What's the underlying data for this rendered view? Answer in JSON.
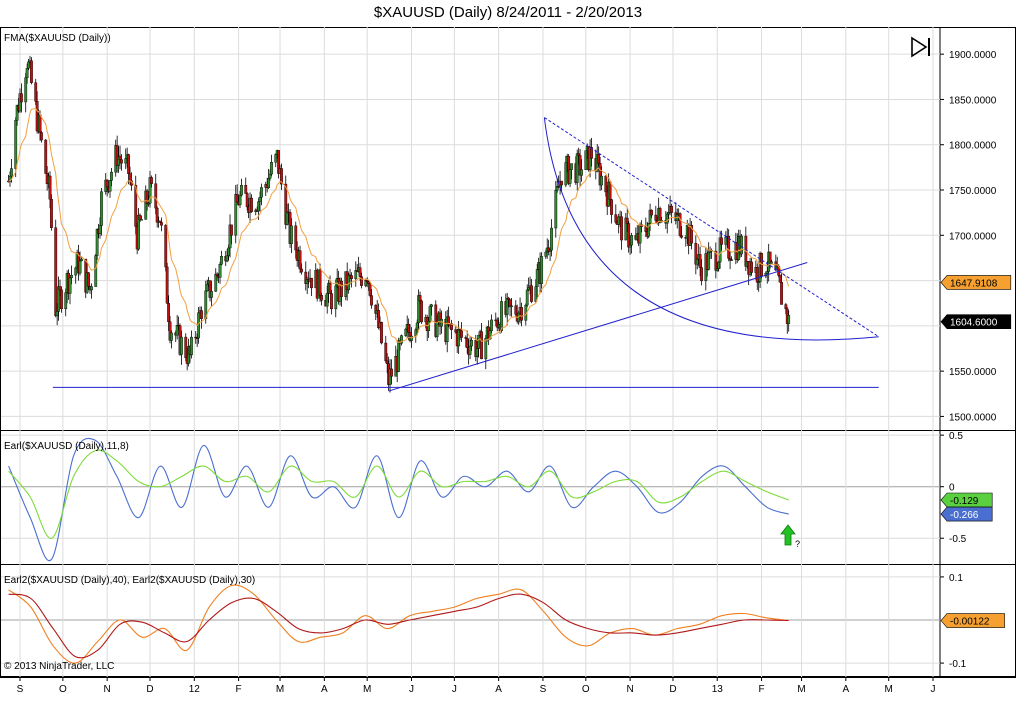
{
  "title": "$XAUUSD (Daily)  8/24/2011 - 2/20/2013",
  "copyright": "© 2013 NinjaTrader, LLC",
  "panels": {
    "price": {
      "label": "FMA($XAUUSD (Daily))"
    },
    "earl": {
      "label": "Earl($XAUUSD (Daily),11,8)"
    },
    "earl2": {
      "label": "Earl2($XAUUSD (Daily),40), Earl2($XAUUSD (Daily),30)"
    }
  },
  "annotation_question": "?",
  "colors": {
    "up_candle": "#2e8b2e",
    "down_candle": "#c01010",
    "fma": "#f0a040",
    "trendlines": "#2020d0",
    "earl_blue": "#4a6fd0",
    "earl_green": "#7ddc3a",
    "earl2_red": "#b01818",
    "earl2_orange": "#f08020",
    "grid": "#dcdcdc",
    "marker_orange": "#f5a030",
    "marker_green": "#5ad040",
    "marker_blue": "#4a6fd0",
    "arrow_green": "#22c222"
  },
  "chart_data": [
    {
      "type": "candlestick",
      "title": "FMA($XAUUSD (Daily))",
      "y_ticks": [
        "1900.0000",
        "1850.0000",
        "1800.0000",
        "1750.0000",
        "1700.0000",
        "1550.0000",
        "1500.0000"
      ],
      "ylim": [
        1485,
        1930
      ],
      "markers": [
        {
          "label": "1647.9108",
          "value": 1647.9,
          "color": "orange"
        },
        {
          "label": "1604.6000",
          "value": 1604.6,
          "color": "black"
        }
      ],
      "price_path": [
        [
          "2011-08-24",
          1760
        ],
        [
          "2011-08-29",
          1830
        ],
        [
          "2011-09-06",
          1895
        ],
        [
          "2011-09-14",
          1820
        ],
        [
          "2011-09-22",
          1740
        ],
        [
          "2011-09-26",
          1620
        ],
        [
          "2011-10-04",
          1650
        ],
        [
          "2011-10-12",
          1670
        ],
        [
          "2011-10-20",
          1640
        ],
        [
          "2011-10-28",
          1740
        ],
        [
          "2011-11-08",
          1790
        ],
        [
          "2011-11-16",
          1770
        ],
        [
          "2011-11-22",
          1700
        ],
        [
          "2011-12-01",
          1750
        ],
        [
          "2011-12-08",
          1720
        ],
        [
          "2011-12-15",
          1600
        ],
        [
          "2011-12-29",
          1565
        ],
        [
          "2012-01-06",
          1620
        ],
        [
          "2012-01-18",
          1660
        ],
        [
          "2012-02-01",
          1740
        ],
        [
          "2012-02-15",
          1740
        ],
        [
          "2012-02-28",
          1785
        ],
        [
          "2012-03-08",
          1700
        ],
        [
          "2012-03-20",
          1660
        ],
        [
          "2012-04-05",
          1630
        ],
        [
          "2012-04-20",
          1650
        ],
        [
          "2012-05-01",
          1660
        ],
        [
          "2012-05-10",
          1590
        ],
        [
          "2012-05-16",
          1540
        ],
        [
          "2012-05-25",
          1575
        ],
        [
          "2012-06-06",
          1620
        ],
        [
          "2012-06-20",
          1600
        ],
        [
          "2012-07-03",
          1590
        ],
        [
          "2012-07-18",
          1575
        ],
        [
          "2012-08-01",
          1610
        ],
        [
          "2012-08-16",
          1620
        ],
        [
          "2012-08-30",
          1660
        ],
        [
          "2012-09-06",
          1700
        ],
        [
          "2012-09-14",
          1770
        ],
        [
          "2012-09-28",
          1775
        ],
        [
          "2012-10-05",
          1790
        ],
        [
          "2012-10-17",
          1745
        ],
        [
          "2012-10-25",
          1710
        ],
        [
          "2012-11-05",
          1690
        ],
        [
          "2012-11-20",
          1730
        ],
        [
          "2012-11-30",
          1720
        ],
        [
          "2012-12-10",
          1710
        ],
        [
          "2012-12-20",
          1665
        ],
        [
          "2013-01-02",
          1680
        ],
        [
          "2013-01-16",
          1690
        ],
        [
          "2013-01-28",
          1660
        ],
        [
          "2013-02-04",
          1670
        ],
        [
          "2013-02-12",
          1650
        ],
        [
          "2013-02-20",
          1604.6
        ]
      ],
      "trendlines": [
        {
          "name": "horizontal support",
          "from": [
            "2011-09-24",
            1532
          ],
          "to": [
            "2013-04-24",
            1532
          ]
        },
        {
          "name": "rising support",
          "from": [
            "2012-05-16",
            1528
          ],
          "to": [
            "2013-03-05",
            1670
          ]
        },
        {
          "name": "falling resistance",
          "from": [
            "2012-09-02",
            1830
          ],
          "to": [
            "2013-04-24",
            1588
          ]
        },
        {
          "name": "arc",
          "from": [
            "2012-09-02",
            1830
          ],
          "to": [
            "2013-04-24",
            1588
          ]
        }
      ]
    },
    {
      "type": "line",
      "title": "Earl($XAUUSD (Daily),11,8)",
      "y_ticks": [
        "0.5",
        "0",
        "-0.5"
      ],
      "ylim": [
        -0.75,
        0.55
      ],
      "series": [
        {
          "name": "blue",
          "values_path": [
            0.2,
            -0.3,
            -0.7,
            0.3,
            0.45,
            0.1,
            -0.3,
            0.2,
            -0.2,
            0.4,
            -0.1,
            0.2,
            -0.2,
            0.3,
            -0.1,
            0.0,
            -0.2,
            0.3,
            -0.3,
            0.25,
            -0.1,
            0.1,
            0.0,
            0.15,
            -0.05,
            0.2,
            -0.2,
            0.0,
            0.15,
            0.0,
            -0.25,
            -0.15,
            0.1,
            0.2,
            0.0,
            -0.2,
            -0.266
          ]
        },
        {
          "name": "green",
          "values_path": [
            0.15,
            -0.1,
            -0.5,
            0.1,
            0.35,
            0.25,
            0.05,
            0.0,
            0.1,
            0.2,
            0.05,
            0.1,
            -0.05,
            0.2,
            0.05,
            0.05,
            -0.1,
            0.2,
            -0.1,
            0.15,
            0.0,
            0.05,
            0.05,
            0.1,
            0.0,
            0.15,
            -0.1,
            -0.05,
            0.05,
            0.05,
            -0.15,
            -0.1,
            0.05,
            0.15,
            0.05,
            -0.05,
            -0.129
          ]
        }
      ],
      "markers": [
        {
          "label": "-0.129",
          "value": -0.129,
          "color": "green"
        },
        {
          "label": "-0.266",
          "value": -0.266,
          "color": "blue"
        }
      ]
    },
    {
      "type": "line",
      "title": "Earl2($XAUUSD (Daily),40), Earl2($XAUUSD (Daily),30)",
      "y_ticks": [
        "0.1",
        "-0.1"
      ],
      "ylim": [
        -0.13,
        0.13
      ],
      "series": [
        {
          "name": "red",
          "values_path": [
            0.06,
            0.05,
            -0.02,
            -0.085,
            -0.07,
            -0.01,
            -0.005,
            -0.03,
            -0.05,
            0.0,
            0.04,
            0.05,
            0.02,
            -0.02,
            -0.03,
            -0.02,
            0.0,
            -0.01,
            0.0,
            0.01,
            0.02,
            0.03,
            0.05,
            0.06,
            0.04,
            0.0,
            -0.02,
            -0.03,
            -0.03,
            -0.035,
            -0.03,
            -0.02,
            -0.01,
            0.0,
            0.0,
            -0.00122
          ]
        },
        {
          "name": "orange",
          "values_path": [
            0.07,
            0.03,
            -0.06,
            -0.1,
            -0.05,
            0.0,
            -0.04,
            -0.02,
            -0.07,
            0.03,
            0.08,
            0.06,
            0.0,
            -0.05,
            -0.04,
            -0.03,
            0.01,
            -0.02,
            0.01,
            0.02,
            0.03,
            0.05,
            0.06,
            0.07,
            0.02,
            -0.04,
            -0.06,
            -0.03,
            -0.02,
            -0.035,
            -0.02,
            -0.01,
            0.01,
            0.015,
            0.005,
            -0.00122
          ]
        }
      ],
      "markers": [
        {
          "label": "-0.00122",
          "value": -0.00122,
          "color": "orange"
        }
      ]
    }
  ],
  "x_axis": {
    "labels": [
      "S",
      "O",
      "N",
      "D",
      "12",
      "F",
      "M",
      "A",
      "M",
      "J",
      "J",
      "A",
      "S",
      "O",
      "N",
      "D",
      "13",
      "F",
      "M",
      "A",
      "M",
      "J"
    ],
    "label_dates": [
      "2011-09-01",
      "2011-10-01",
      "2011-11-01",
      "2011-12-01",
      "2012-01-01",
      "2012-02-01",
      "2012-03-01",
      "2012-04-01",
      "2012-05-01",
      "2012-06-01",
      "2012-07-01",
      "2012-08-01",
      "2012-09-01",
      "2012-10-01",
      "2012-11-01",
      "2012-12-01",
      "2013-01-01",
      "2013-02-01",
      "2013-03-01",
      "2013-04-01",
      "2013-05-01",
      "2013-06-01"
    ]
  }
}
